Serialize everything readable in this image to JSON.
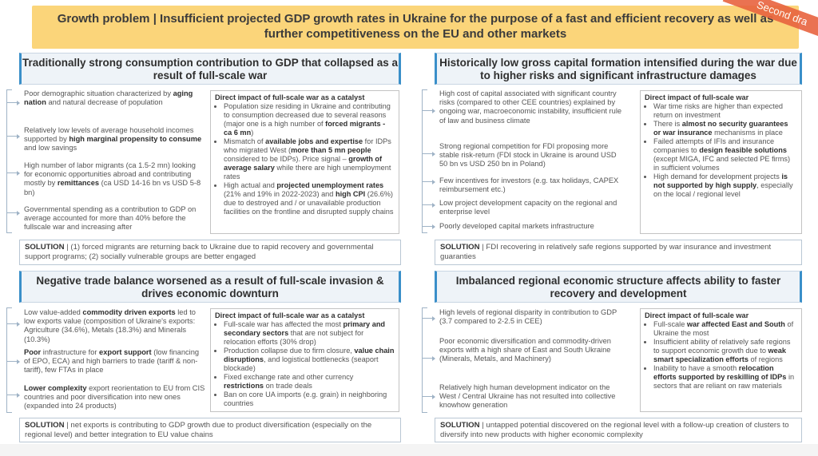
{
  "header": {
    "title": "Growth problem | Insufficient projected GDP growth rates in Ukraine for the purpose of a fast and efficient recovery as well as further competitiveness on the EU and other markets",
    "ribbon": "Second dra"
  },
  "panels": {
    "consumption": {
      "title": "Traditionally strong consumption contribution to GDP that collapsed as a result of full-scale war",
      "left": [
        {
          "a": "Poor demographic situation characterized by ",
          "b": "aging nation",
          "c": " and natural decrease of population"
        },
        {
          "a": "Relatively low levels of average household incomes supported by ",
          "b": "high marginal propensity to consume",
          "c": " and low savings"
        },
        {
          "a": "High number of labor migrants (ca 1.5-2 mn) looking for economic opportunities abroad and contributing mostly by ",
          "b": "remittances",
          "c": " (ca USD 14-16 bn vs USD 5-8 bn)"
        },
        {
          "a": "Governmental spending as a contribution to GDP on average accounted for more than 40% before the fullscale war and increasing after",
          "b": "",
          "c": ""
        }
      ],
      "direct_title": "Direct impact of full-scale war as a catalyst",
      "direct": [
        {
          "a": "Population size residing in Ukraine and contributing to consumption decreased due to several reasons (major one is a high number of ",
          "b": "forced migrants - ca 6 mn",
          "c": ")"
        },
        {
          "a": "Mismatch of ",
          "b": "available jobs and expertise",
          "c": " for IDPs who migrated West (",
          "d": "more than 5 mn people",
          "e": " considered to be IDPs). Price signal – ",
          "f": "growth of average salary",
          "g": " while there are high unemployment rates"
        },
        {
          "a": "High actual and ",
          "b": "projected unemployment rates",
          "c": " (21% and 19% in 2022-2023) and ",
          "d": "high CPI",
          "e": " (26.6%) due to destroyed and / or unavailable production facilities on the frontline and disrupted supply chains"
        }
      ],
      "solution_label": "SOLUTION",
      "solution_text": " | (1) forced migrants are returning back to Ukraine due to rapid recovery and governmental support programs; (2) socially vulnerable groups are better engaged"
    },
    "capital": {
      "title": "Historically low gross capital formation intensified during the war due to higher risks and significant infrastructure damages",
      "left": [
        "High cost of capital associated with significant country risks (compared to other CEE countries) explained by ongoing war, macroeconomic instability, insufficient rule of law and business climate",
        "Strong regional competition for FDI proposing more stable risk-return (FDI stock in Ukraine is around USD 50 bn vs USD 250 bn in Poland)",
        "Few incentives for investors (e.g. tax holidays, CAPEX reimbursement etc.)",
        "Low project development capacity on the regional and enterprise level",
        "Poorly developed capital markets infrastructure"
      ],
      "direct_title": "Direct impact of full-scale war",
      "direct": [
        {
          "a": "War time risks are higher than expected return on investment",
          "b": "",
          "c": ""
        },
        {
          "a": "There is ",
          "b": "almost no security guarantees or war insurance",
          "c": " mechanisms in place"
        },
        {
          "a": "Failed attempts of IFIs and insurance companies to ",
          "b": "design feasible solutions",
          "c": " (except MIGA, IFC and selected PE firms) in sufficient volumes"
        },
        {
          "a": "High demand for development projects ",
          "b": "is not supported by high supply",
          "c": ", especially on the local / regional level"
        }
      ],
      "solution_label": "SOLUTION",
      "solution_text": " | FDI recovering in relatively safe regions supported by war insurance and investment guaranties"
    },
    "trade": {
      "title": "Negative trade balance worsened as a result of full-scale invasion & drives economic downturn",
      "left": [
        {
          "a": "Low value-added ",
          "b": "commodity driven exports",
          "c": " led to low exports value (composition of Ukraine's exports: Agriculture (34.6%), Metals (18.3%) and Minerals (10.3%)"
        },
        {
          "a": "",
          "b": "Poor",
          "c": " infrastructure for ",
          "d": "export support",
          "e": " (low financing of EPO, ECA) and high barriers to trade (tariff & non-tariff), few FTAs in place"
        },
        {
          "a": "",
          "b": "Lower complexity",
          "c": " export reorientation to EU from CIS countries and poor diversification into new ones (expanded into 24 products)"
        }
      ],
      "direct_title": "Direct impact of full-scale war as a catalyst",
      "direct": [
        {
          "a": "Full-scale war has affected the most ",
          "b": "primary and secondary sectors",
          "c": " that are not subject for relocation efforts (30% drop)"
        },
        {
          "a": "Production collapse due to firm closure, ",
          "b": "value chain disruptions",
          "c": ", and logistical bottlenecks (seaport blockade)"
        },
        {
          "a": "Fixed exchange rate and other currency ",
          "b": "restrictions",
          "c": " on trade deals"
        },
        {
          "a": "Ban on core UA imports (e.g. grain) in neighboring countries",
          "b": "",
          "c": ""
        }
      ],
      "solution_label": "SOLUTION",
      "solution_text": " | net exports is contributing to GDP growth due to product diversification (especially on the regional level) and better integration to EU value chains"
    },
    "regional": {
      "title": "Imbalanced regional economic structure affects ability to faster recovery and development",
      "left": [
        "High levels of regional disparity in contribution to GDP (3.7 compared to 2-2.5 in CEE)",
        "Poor economic diversification and commodity-driven exports with a high share of East and South Ukraine (Minerals, Metals, and Machinery)",
        "Relatively high human development indicator on the West / Central Ukraine has not resulted into collective knowhow generation"
      ],
      "direct_title": "Direct impact of full-scale war",
      "direct": [
        {
          "a": "Full-scale ",
          "b": "war affected East and South",
          "c": " of Ukraine the most"
        },
        {
          "a": "Insufficient ability of relatively safe regions to support economic growth due to ",
          "b": "weak smart specialization efforts",
          "c": " of regions"
        },
        {
          "a": "Inability to have a smooth ",
          "b": "relocation efforts supported by reskilling of IDPs",
          "c": " in sectors that are reliant on raw materials"
        }
      ],
      "solution_label": "SOLUTION",
      "solution_text": " | untapped potential discovered on the regional level with a follow-up creation of clusters to diversify into new products with higher economic complexity"
    }
  }
}
